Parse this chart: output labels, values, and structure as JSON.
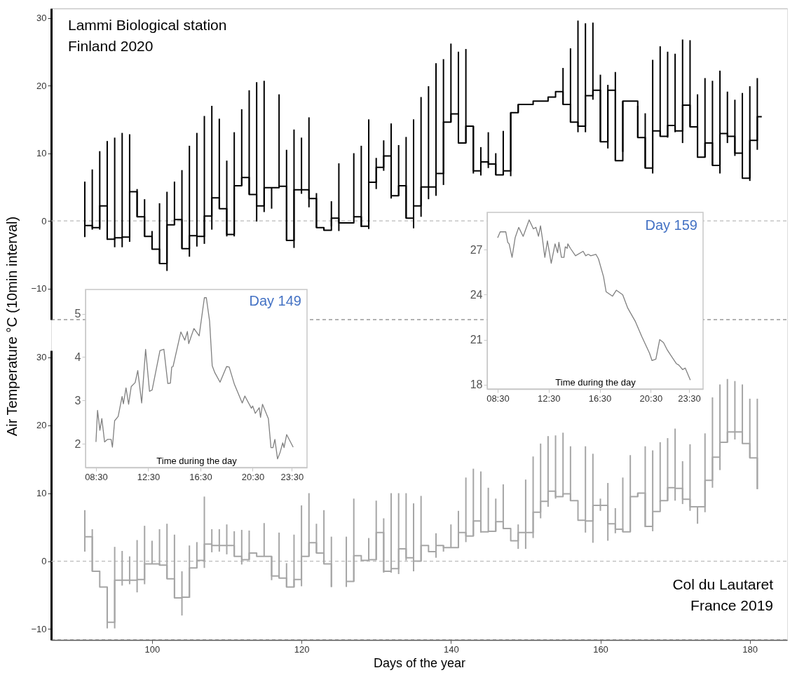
{
  "chart_data": [
    {
      "type": "step",
      "title": "Lammi Biological station\nFinland 2020",
      "ylabel": "Air Temperature °C (10min interval)",
      "xlim": [
        86.5,
        185
      ],
      "ylim": [
        -14.6,
        31.4
      ],
      "yticks": [
        -10,
        0,
        10,
        20,
        30
      ],
      "tick_labels": "y",
      "ref_lines": [
        {
          "axis": "y",
          "value": 0,
          "color": "#bbbbbb",
          "line_style": "dashed"
        },
        {
          "axis": "y",
          "value": -14.6,
          "color": "#666666",
          "line_style": "dashed"
        }
      ],
      "series": [
        {
          "color": "#000000",
          "x": [
            91,
            92,
            93,
            94,
            95,
            96,
            97,
            98,
            99,
            100,
            101,
            102,
            103,
            104,
            105,
            106,
            107,
            108,
            109,
            110,
            111,
            112,
            113,
            114,
            115,
            116,
            117,
            118,
            119,
            120,
            121,
            122,
            123,
            124,
            125,
            127,
            128,
            129,
            130,
            131,
            132,
            133,
            134,
            135,
            136,
            137,
            138,
            139,
            140,
            141,
            142,
            143,
            144,
            145,
            146,
            147,
            148,
            149,
            151,
            153,
            154,
            155,
            156,
            157,
            158,
            159,
            160,
            161,
            162,
            163,
            165,
            166,
            167,
            168,
            169,
            170,
            171,
            172,
            173,
            174,
            175,
            176,
            177,
            178,
            179,
            180,
            181,
            181.6
          ],
          "values": [
            -0.7,
            -1.0,
            2.2,
            -2.7,
            -2.5,
            -2.4,
            4.3,
            0.6,
            -2.3,
            -4.2,
            -6.3,
            -0.6,
            0.2,
            -4.1,
            -2.2,
            -2.3,
            0.7,
            3.4,
            1.8,
            -2.0,
            5.2,
            6.4,
            3.9,
            2.2,
            4.9,
            4.9,
            5.1,
            -2.9,
            4.6,
            4.6,
            3.3,
            -1.0,
            -1.4,
            0.4,
            -0.3,
            0.6,
            -0.8,
            5.7,
            7.9,
            9.6,
            3.7,
            5.2,
            0.4,
            2.2,
            5.0,
            5.0,
            7.0,
            14.6,
            15.8,
            11.5,
            14.0,
            7.4,
            8.7,
            8.4,
            6.8,
            7.4,
            16.0,
            17.2,
            17.7,
            18.3,
            19.1,
            17.2,
            14.6,
            14.0,
            18.5,
            19.3,
            11.7,
            19.3,
            8.9,
            17.7,
            12.3,
            7.8,
            13.3,
            12.5,
            14.1,
            13.3,
            17.1,
            13.9,
            9.4,
            11.5,
            8.2,
            12.9,
            12.5,
            10.0,
            6.3,
            11.9,
            15.4,
            15.4
          ],
          "errors": [
            [
              -2.4,
              5.8
            ],
            [
              -1.3,
              7.6
            ],
            [
              -1.3,
              10.3
            ],
            [
              -2.8,
              11.8
            ],
            [
              -3.9,
              12.3
            ],
            [
              -3.9,
              13.0
            ],
            [
              -3.1,
              12.8
            ],
            [
              0.6,
              4.7
            ],
            [
              -2.3,
              3.2
            ],
            [
              -4.2,
              -1.5
            ],
            [
              -6.3,
              2.6
            ],
            [
              -7.4,
              4.3
            ],
            [
              -0.6,
              5.8
            ],
            [
              -4.1,
              7.5
            ],
            [
              -5.3,
              11.1
            ],
            [
              -3.8,
              13.0
            ],
            [
              -3.4,
              15.5
            ],
            [
              -1.3,
              17.0
            ],
            [
              1.8,
              15.1
            ],
            [
              -2.3,
              8.9
            ],
            [
              -2.3,
              13.1
            ],
            [
              5.2,
              16.5
            ],
            [
              3.9,
              19.3
            ],
            [
              -0.1,
              20.5
            ],
            [
              1.3,
              20.7
            ],
            [
              1.8,
              4.9
            ],
            [
              5.1,
              18.7
            ],
            [
              -2.9,
              10.5
            ],
            [
              -4.0,
              13.5
            ],
            [
              4.0,
              12.3
            ],
            [
              2.0,
              15.3
            ],
            [
              -1.0,
              4.1
            ],
            [
              -1.4,
              -1.0
            ],
            [
              -0.8,
              2.9
            ],
            [
              -1.5,
              8.5
            ],
            [
              0.6,
              10.0
            ],
            [
              -0.9,
              11.1
            ],
            [
              -1.2,
              15.0
            ],
            [
              4.7,
              9.3
            ],
            [
              7.4,
              11.9
            ],
            [
              3.3,
              14.4
            ],
            [
              3.7,
              11.2
            ],
            [
              0.4,
              12.4
            ],
            [
              -1.1,
              15.0
            ],
            [
              0.6,
              18.3
            ],
            [
              3.2,
              19.9
            ],
            [
              3.7,
              23.3
            ],
            [
              5.3,
              23.9
            ],
            [
              14.6,
              26.2
            ],
            [
              11.5,
              25.0
            ],
            [
              11.5,
              25.4
            ],
            [
              7.0,
              14.0
            ],
            [
              6.7,
              10.9
            ],
            [
              7.8,
              13.1
            ],
            [
              6.8,
              10.0
            ],
            [
              6.8,
              13.3
            ],
            [
              6.6,
              16.0
            ],
            [
              16.0,
              17.2
            ],
            null,
            null,
            null,
            [
              17.2,
              22.6
            ],
            [
              14.6,
              25.5
            ],
            [
              13.1,
              29.6
            ],
            [
              13.1,
              29.2
            ],
            [
              17.9,
              29.3
            ],
            [
              11.7,
              21.6
            ],
            [
              10.7,
              20.1
            ],
            [
              8.9,
              22.0
            ],
            [
              10.2,
              17.7
            ],
            [
              12.3,
              17.0
            ],
            [
              7.8,
              15.9
            ],
            [
              7.0,
              23.8
            ],
            [
              12.5,
              25.8
            ],
            [
              12.3,
              25.0
            ],
            [
              13.1,
              24.7
            ],
            [
              11.5,
              26.8
            ],
            [
              13.9,
              26.7
            ],
            [
              9.4,
              18.7
            ],
            [
              9.4,
              21.1
            ],
            [
              8.2,
              20.7
            ],
            [
              7.0,
              22.2
            ],
            [
              11.5,
              19.1
            ],
            [
              9.6,
              17.9
            ],
            [
              6.3,
              18.9
            ],
            [
              5.9,
              19.9
            ],
            [
              10.5,
              21.1
            ],
            null
          ]
        }
      ]
    },
    {
      "type": "step",
      "title": "Col du Lautaret\nFrance 2019",
      "xlabel": "Days of the year",
      "xlim": [
        86.5,
        185
      ],
      "ylim": [
        -11.6,
        31
      ],
      "xticks": [
        100,
        120,
        140,
        160,
        180
      ],
      "yticks": [
        -10,
        0,
        10,
        20,
        30
      ],
      "ref_lines": [
        {
          "axis": "y",
          "value": 0,
          "color": "#bbbbbb",
          "line_style": "dashed"
        },
        {
          "axis": "y",
          "value": -11.6,
          "color": "#666666",
          "line_style": "dashed"
        }
      ],
      "series": [
        {
          "color": "#a6a6a6",
          "x": [
            91,
            92,
            93,
            94,
            95,
            96,
            97,
            98,
            99,
            100,
            101,
            102,
            103,
            104,
            105,
            106,
            107,
            108,
            109,
            110,
            111,
            112,
            113,
            114,
            115,
            116,
            117,
            118,
            119,
            120,
            121,
            122,
            123,
            124,
            125,
            126,
            127,
            128,
            129,
            130,
            131,
            132,
            133,
            134,
            135,
            136,
            137,
            138,
            139,
            140,
            141,
            142,
            143,
            144,
            145,
            146,
            147,
            148,
            149,
            150,
            151,
            152,
            153,
            154,
            155,
            156,
            157,
            158,
            159,
            160,
            161,
            162,
            163,
            164,
            165,
            166,
            167,
            168,
            169,
            170,
            171,
            172,
            173,
            174,
            175,
            176,
            177,
            178,
            179,
            180,
            181
          ],
          "values": [
            3.6,
            -1.5,
            -3.8,
            -9.0,
            -2.8,
            -2.8,
            -2.8,
            -2.7,
            -0.4,
            -0.4,
            -0.6,
            -2.6,
            -5.4,
            -5.3,
            -1.0,
            0.1,
            2.5,
            2.3,
            2.3,
            2.3,
            0.7,
            0.2,
            1.2,
            0.7,
            0.7,
            -2.2,
            -2.5,
            -3.8,
            -2.7,
            0.7,
            2.7,
            1.2,
            -0.4,
            -3.8,
            null,
            -3.0,
            0.8,
            0.1,
            0.2,
            4.2,
            -1.5,
            -1.1,
            1.8,
            0.5,
            0.0,
            2.3,
            1.4,
            2.3,
            2.0,
            2.0,
            4.2,
            3.7,
            5.9,
            4.3,
            4.4,
            5.8,
            4.8,
            3.0,
            4.2,
            4.2,
            7.2,
            8.8,
            10.3,
            9.5,
            9.9,
            8.9,
            6.0,
            5.9,
            8.2,
            8.2,
            5.5,
            4.7,
            4.3,
            9.5,
            10.0,
            5.1,
            7.3,
            8.9,
            10.8,
            10.7,
            9.1,
            8.0,
            8.0,
            11.9,
            15.3,
            17.5,
            19.0,
            19.0,
            17.3,
            15.2,
            10.6
          ],
          "errors": [
            [
              1.4,
              7.5
            ],
            [
              -1.5,
              4.7
            ],
            null,
            [
              -9.9,
              -3.8
            ],
            [
              -9.9,
              2.1
            ],
            [
              -3.6,
              1.5
            ],
            [
              -3.4,
              0.7
            ],
            [
              -4.6,
              3.1
            ],
            [
              -3.4,
              5.2
            ],
            [
              -0.4,
              3.0
            ],
            [
              -0.6,
              4.7
            ],
            [
              -2.6,
              5.5
            ],
            [
              -5.4,
              3.9
            ],
            [
              -8.0,
              -1.5
            ],
            [
              -5.4,
              2.3
            ],
            [
              -1.0,
              2.8
            ],
            [
              -1.0,
              9.5
            ],
            [
              1.3,
              4.7
            ],
            [
              1.4,
              4.7
            ],
            [
              1.0,
              5.4
            ],
            [
              0.7,
              4.4
            ],
            [
              -0.5,
              4.6
            ],
            [
              0.2,
              4.5
            ],
            null,
            [
              0.7,
              5.6
            ],
            [
              -2.8,
              0.7
            ],
            [
              -2.5,
              4.2
            ],
            [
              -3.8,
              -0.3
            ],
            [
              -3.8,
              3.9
            ],
            [
              -3.7,
              8.2
            ],
            [
              0.7,
              10.0
            ],
            [
              1.2,
              5.5
            ],
            [
              -0.4,
              7.5
            ],
            [
              -3.8,
              3.6
            ],
            null,
            [
              -3.8,
              3.6
            ],
            [
              -3.0,
              9.2
            ],
            null,
            [
              0.1,
              3.4
            ],
            [
              0.2,
              8.9
            ],
            [
              -1.7,
              6.3
            ],
            [
              -1.7,
              10.0
            ],
            [
              -1.9,
              10.0
            ],
            [
              0.1,
              10.0
            ],
            [
              -1.5,
              8.5
            ],
            [
              0.0,
              9.6
            ],
            null,
            [
              0.5,
              4.1
            ],
            [
              1.4,
              2.3
            ],
            [
              2.0,
              5.4
            ],
            [
              2.0,
              7.4
            ],
            [
              2.8,
              12.3
            ],
            [
              3.7,
              13.6
            ],
            [
              4.2,
              13.2
            ],
            [
              4.3,
              10.8
            ],
            [
              4.4,
              9.2
            ],
            [
              4.8,
              11.3
            ],
            null,
            [
              1.8,
              5.4
            ],
            [
              1.8,
              12.0
            ],
            [
              3.4,
              15.4
            ],
            [
              6.3,
              17.3
            ],
            [
              8.0,
              18.4
            ],
            [
              9.2,
              18.5
            ],
            [
              9.7,
              18.9
            ],
            [
              8.9,
              16.9
            ],
            null,
            [
              4.2,
              16.9
            ],
            [
              2.7,
              15.8
            ],
            [
              7.4,
              9.2
            ],
            [
              3.0,
              11.5
            ],
            [
              4.1,
              7.8
            ],
            [
              4.3,
              12.3
            ],
            [
              4.3,
              15.6
            ],
            [
              9.5,
              10.0
            ],
            [
              5.0,
              16.9
            ],
            [
              4.4,
              16.3
            ],
            [
              8.7,
              17.5
            ],
            [
              8.9,
              18.1
            ],
            [
              8.9,
              19.5
            ],
            [
              8.4,
              14.7
            ],
            [
              7.4,
              17.2
            ],
            [
              5.5,
              8.0
            ],
            [
              7.2,
              18.8
            ],
            [
              10.8,
              24.1
            ],
            [
              13.4,
              26.0
            ],
            [
              17.5,
              26.8
            ],
            [
              17.9,
              26.5
            ],
            [
              17.3,
              26.0
            ],
            [
              15.2,
              23.9
            ],
            [
              10.6,
              23.9
            ]
          ]
        }
      ]
    },
    {
      "type": "line",
      "title": "Day 149",
      "xlabel": "Time during the day",
      "xlim": [
        7.7,
        24.66
      ],
      "ylim": [
        1.45,
        5.56
      ],
      "yticks": [
        2,
        3,
        4,
        5
      ],
      "xticks": [
        {
          "value": 8.5,
          "label": "08:30"
        },
        {
          "value": 12.5,
          "label": "12:30"
        },
        {
          "value": 16.5,
          "label": "16:30"
        },
        {
          "value": 20.5,
          "label": "20:30"
        },
        {
          "value": 23.5,
          "label": "23:30"
        }
      ],
      "series": [
        {
          "color": "#808080",
          "x": [
            8.5,
            8.62,
            8.8,
            8.95,
            9.16,
            9.39,
            9.66,
            9.76,
            9.93,
            10.2,
            10.5,
            10.6,
            10.8,
            11.0,
            11.2,
            11.5,
            11.7,
            12.0,
            12.3,
            12.6,
            12.8,
            13.4,
            13.7,
            14.0,
            14.2,
            14.3,
            14.4,
            15.0,
            15.3,
            15.5,
            15.6,
            16.0,
            16.4,
            16.8,
            16.95,
            17.2,
            17.4,
            17.6,
            18.0,
            18.5,
            18.7,
            19.1,
            19.7,
            19.9,
            20.4,
            20.5,
            20.7,
            21.0,
            21.1,
            21.25,
            21.7,
            21.9,
            22.05,
            22.2,
            22.4,
            22.6,
            22.8,
            22.9,
            23.1,
            23.6
          ],
          "values": [
            2.04,
            2.77,
            2.31,
            2.58,
            2.04,
            2.1,
            2.1,
            1.92,
            2.53,
            2.63,
            3.09,
            2.92,
            3.29,
            2.91,
            3.32,
            3.41,
            3.69,
            2.94,
            4.18,
            3.21,
            3.24,
            4.15,
            4.18,
            3.39,
            3.4,
            3.77,
            3.78,
            4.58,
            4.39,
            4.59,
            4.31,
            4.66,
            4.49,
            5.37,
            5.37,
            4.83,
            3.8,
            3.64,
            3.42,
            3.78,
            3.77,
            3.37,
            2.94,
            3.1,
            2.82,
            2.87,
            2.7,
            2.83,
            2.61,
            2.91,
            2.58,
            1.91,
            1.91,
            2.1,
            1.65,
            1.8,
            2.02,
            1.91,
            2.21,
            1.92
          ]
        }
      ]
    },
    {
      "type": "line",
      "title": "Day 159",
      "xlabel": "Time during the day",
      "xlim": [
        7.68,
        24.6
      ],
      "ylim": [
        17.7,
        29.5
      ],
      "yticks": [
        18,
        21,
        24,
        27
      ],
      "xticks": [
        {
          "value": 8.5,
          "label": "08:30"
        },
        {
          "value": 12.5,
          "label": "12:30"
        },
        {
          "value": 16.5,
          "label": "16:30"
        },
        {
          "value": 20.5,
          "label": "20:30"
        },
        {
          "value": 23.5,
          "label": "23:30"
        }
      ],
      "series": [
        {
          "color": "#808080",
          "x": [
            8.5,
            8.7,
            8.95,
            9.14,
            9.29,
            9.4,
            9.63,
            9.87,
            10.15,
            10.5,
            10.97,
            11.3,
            11.5,
            11.7,
            11.86,
            12.0,
            12.2,
            12.4,
            12.7,
            13.0,
            13.2,
            13.3,
            13.5,
            13.7,
            13.8,
            13.95,
            14.0,
            14.2,
            14.6,
            15.2,
            15.4,
            15.6,
            15.8,
            16.2,
            16.4,
            16.8,
            17.0,
            17.5,
            17.8,
            18.3,
            18.7,
            19.3,
            19.8,
            20.4,
            20.6,
            20.9,
            21.2,
            21.5,
            21.8,
            22.5,
            22.7,
            23.0,
            23.2,
            23.6
          ],
          "values": [
            27.8,
            28.2,
            28.2,
            28.2,
            27.5,
            27.4,
            26.5,
            27.8,
            28.5,
            27.9,
            29.0,
            28.4,
            28.5,
            27.9,
            28.6,
            27.8,
            26.5,
            27.6,
            26.1,
            27.4,
            26.8,
            27.5,
            26.5,
            26.5,
            27.2,
            27.1,
            27.4,
            27.1,
            26.6,
            26.9,
            26.6,
            26.7,
            26.6,
            26.7,
            26.4,
            25.2,
            24.2,
            23.9,
            24.3,
            24.0,
            23.1,
            22.2,
            21.2,
            20.1,
            19.6,
            19.7,
            21.0,
            20.8,
            20.3,
            19.4,
            19.3,
            19.0,
            19.1,
            18.3
          ]
        }
      ]
    }
  ]
}
